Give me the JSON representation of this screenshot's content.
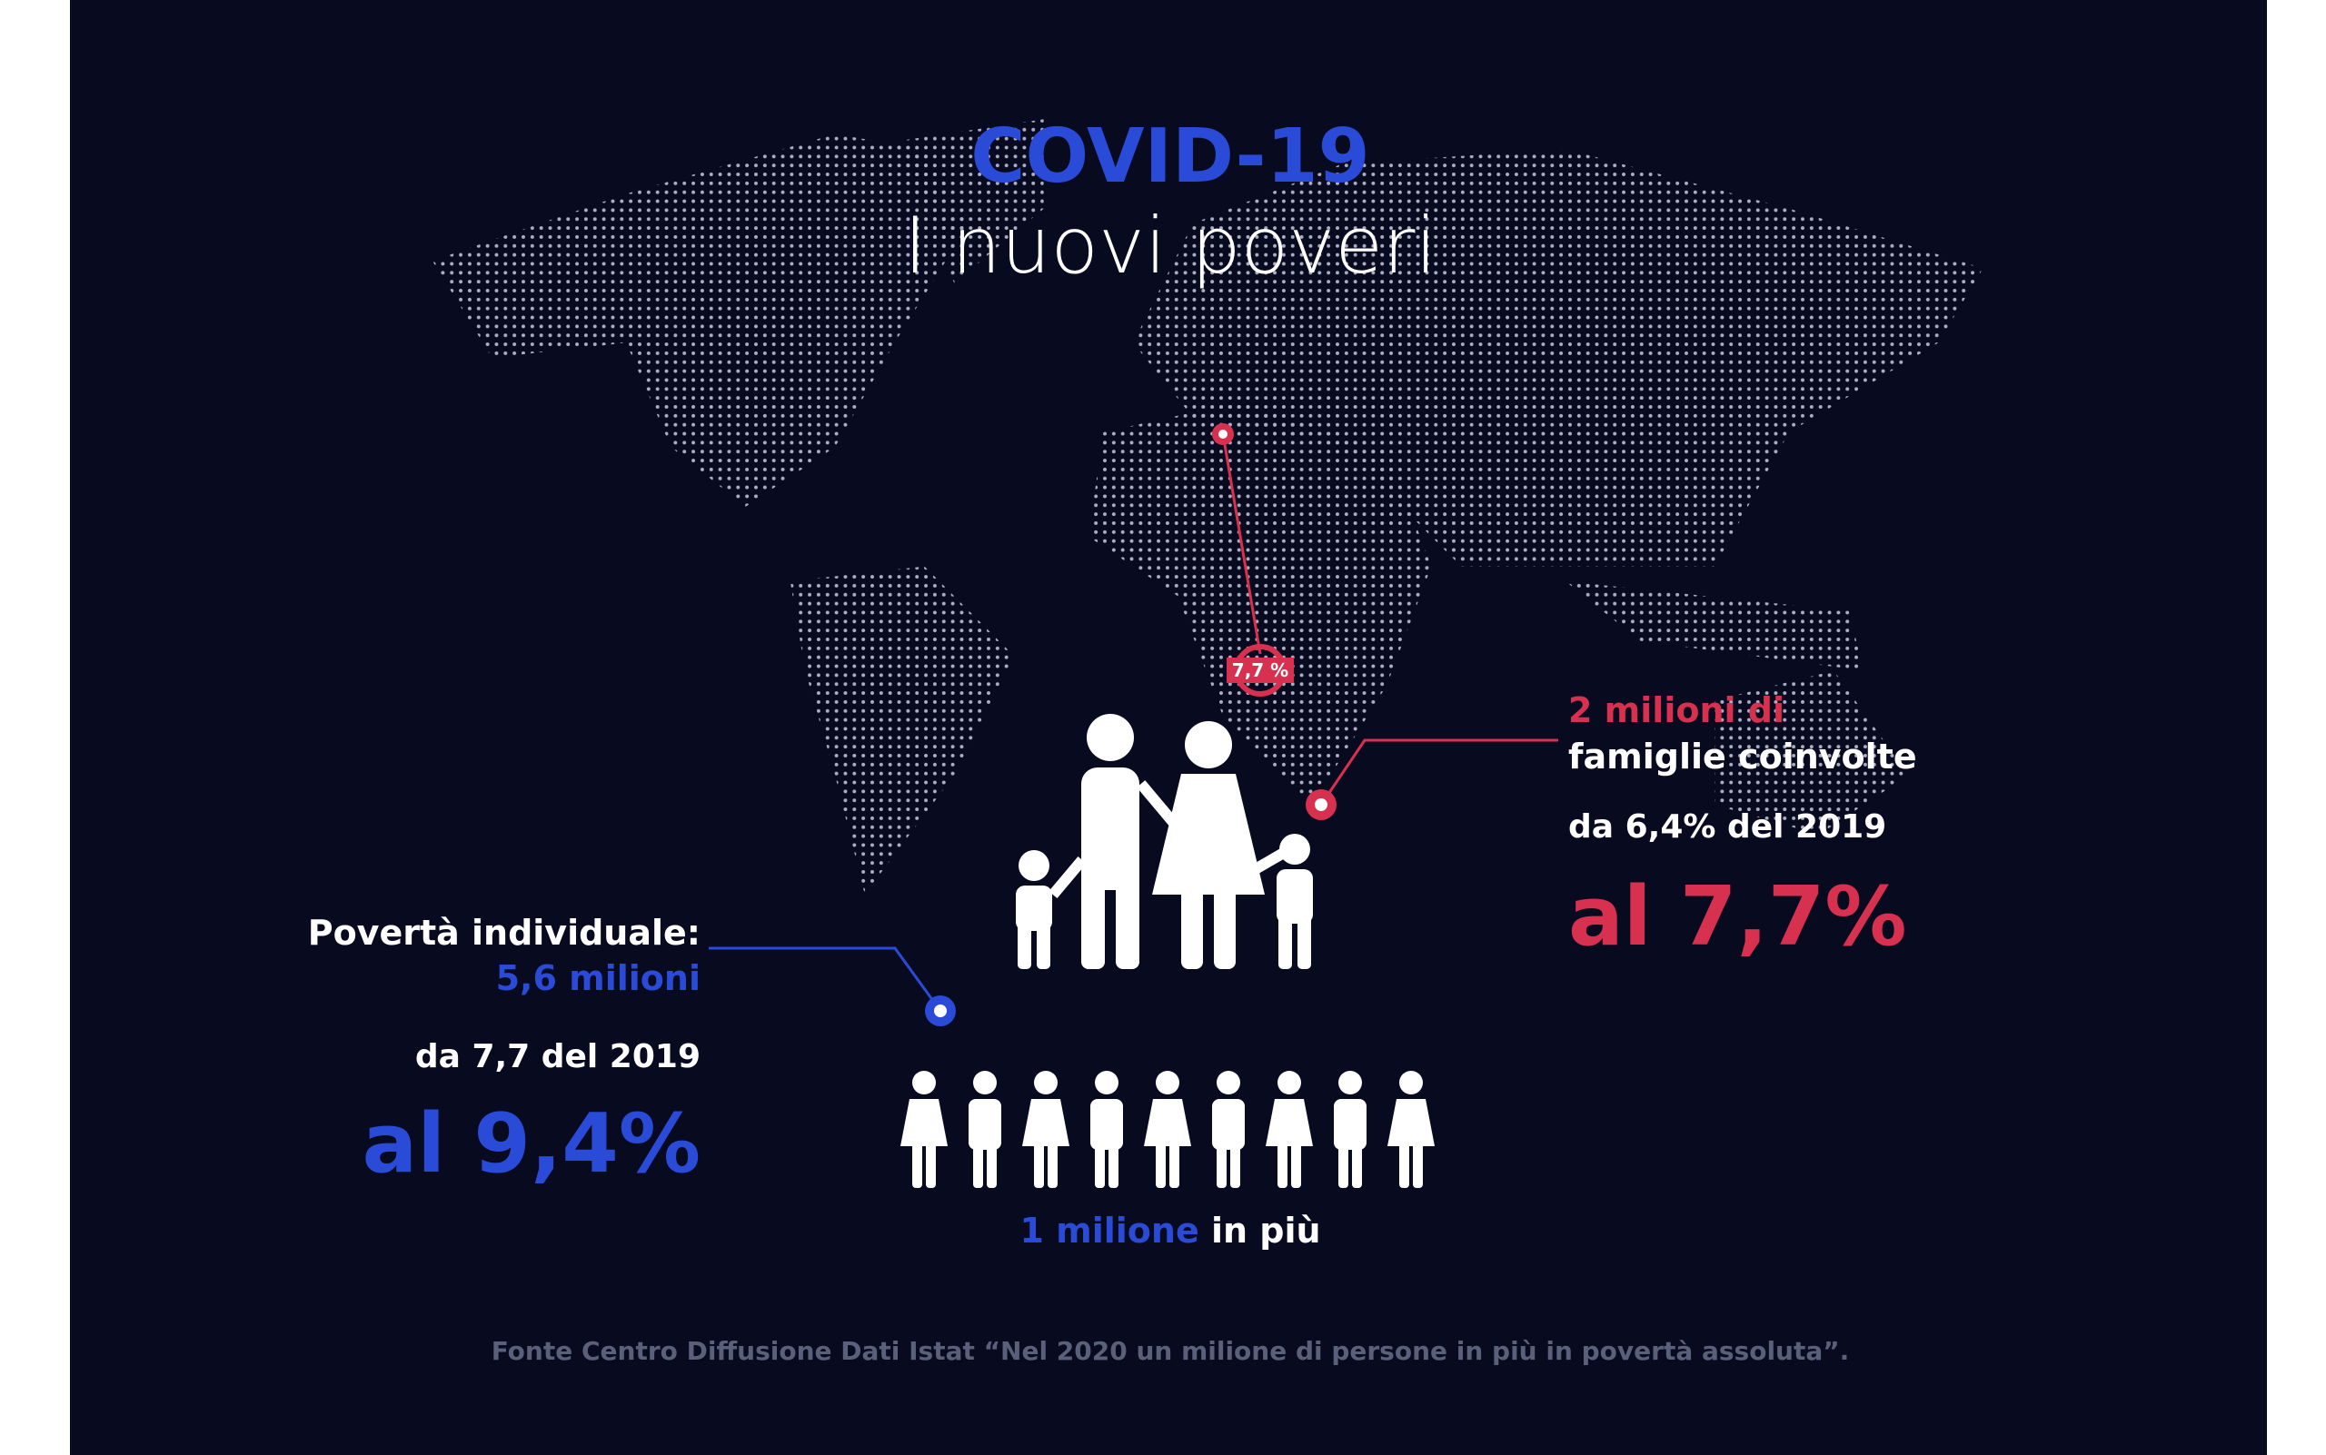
{
  "header": {
    "title": "COVID-19",
    "subtitle": "I nuovi poveri"
  },
  "map": {
    "badge": "7,7 %"
  },
  "families": {
    "count": "2 milioni di",
    "label": "famiglie coinvolte",
    "from": "da 6,4% del 2019",
    "to": "al 7,7%"
  },
  "individuals": {
    "label": "Povertà individuale:",
    "count": "5,6 milioni",
    "from": "da 7,7 del 2019",
    "to": "al 9,4%"
  },
  "increase": {
    "count": "1 milione",
    "label": "in più"
  },
  "source": "Fonte Centro Diffusione Dati Istat “Nel 2020 un milione di persone in più in povertà assoluta”."
}
